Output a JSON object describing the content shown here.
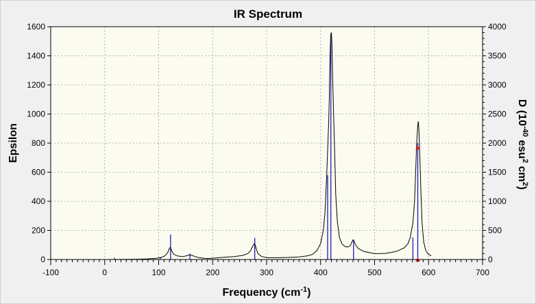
{
  "chart_data": {
    "type": "line",
    "title": "IR Spectrum",
    "xlabel": "Frequency (cm",
    "xlabel_sup": "-1",
    "xlabel_tail": ")",
    "ylabel": "Epsilon",
    "y2label_parts": [
      "D (10",
      "-40",
      " esu",
      "2",
      " cm",
      "2",
      ")"
    ],
    "xlim": [
      -100,
      700
    ],
    "ylim": [
      0,
      1600
    ],
    "y2lim": [
      0,
      4000
    ],
    "x_ticks": [
      "-100",
      "0",
      "100",
      "200",
      "300",
      "400",
      "500",
      "600",
      "700"
    ],
    "y_ticks": [
      "0",
      "200",
      "400",
      "600",
      "800",
      "1000",
      "1200",
      "1400",
      "1600"
    ],
    "y2_ticks": [
      "0",
      "500",
      "1000",
      "1500",
      "2000",
      "2500",
      "3000",
      "3500",
      "4000"
    ],
    "grid": true,
    "colors": {
      "spectrum": "#000000",
      "sticks": "#1a1ab0",
      "marker": "#e02020",
      "plot_bg": "#fbfbf0"
    },
    "spectrum": {
      "x": [
        -5,
        15,
        40,
        60,
        80,
        95,
        105,
        112,
        117,
        120,
        122,
        124,
        128,
        135,
        145,
        152,
        158,
        162,
        168,
        175,
        185,
        195,
        205,
        220,
        240,
        255,
        265,
        270,
        274,
        277,
        279,
        281,
        284,
        290,
        300,
        320,
        340,
        360,
        375,
        385,
        393,
        400,
        405,
        408,
        411,
        413,
        415,
        416,
        417,
        418,
        419,
        420,
        421,
        422,
        423,
        424,
        426,
        428,
        431,
        435,
        440,
        445,
        450,
        455,
        458,
        460,
        462,
        465,
        470,
        480,
        500,
        520,
        540,
        555,
        562,
        566,
        568,
        571,
        574,
        576,
        578,
        580,
        581,
        582,
        584,
        586,
        588,
        591,
        595,
        600,
        605
      ],
      "y": [
        0,
        0,
        1,
        2,
        4,
        8,
        14,
        26,
        50,
        80,
        82,
        60,
        36,
        24,
        20,
        26,
        32,
        28,
        20,
        12,
        8,
        7,
        10,
        15,
        20,
        28,
        40,
        60,
        90,
        108,
        100,
        70,
        40,
        22,
        12,
        12,
        14,
        18,
        25,
        35,
        60,
        110,
        200,
        320,
        550,
        750,
        950,
        1100,
        1300,
        1460,
        1550,
        1560,
        1480,
        1300,
        1150,
        1000,
        750,
        450,
        260,
        150,
        105,
        90,
        85,
        95,
        120,
        135,
        125,
        100,
        75,
        55,
        40,
        42,
        55,
        80,
        110,
        150,
        190,
        250,
        400,
        600,
        800,
        920,
        950,
        900,
        700,
        450,
        250,
        120,
        60,
        35,
        25
      ]
    },
    "sticks": [
      {
        "x": 18,
        "d": 30
      },
      {
        "x": 103,
        "d": 40
      },
      {
        "x": 122,
        "d": 430
      },
      {
        "x": 158,
        "d": 100
      },
      {
        "x": 278,
        "d": 370
      },
      {
        "x": 413,
        "d": 1450
      },
      {
        "x": 419,
        "d": 3850
      },
      {
        "x": 461,
        "d": 340
      },
      {
        "x": 571,
        "d": 380
      },
      {
        "x": 580,
        "d": 2000
      }
    ],
    "markers": [
      {
        "x": 580,
        "y": 770
      },
      {
        "x": 580,
        "y": 0
      }
    ]
  }
}
